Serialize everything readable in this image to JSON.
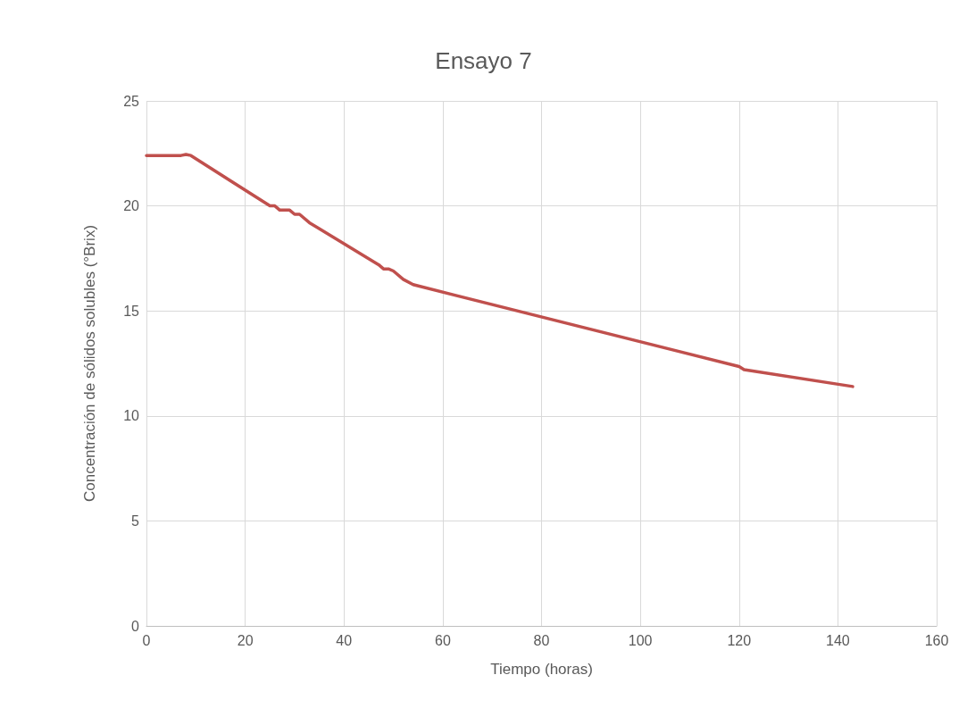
{
  "chart_data": {
    "type": "line",
    "title": "Ensayo 7",
    "xlabel": "Tiempo (horas)",
    "ylabel": "Concentración de sólidos solubles (°Brix)",
    "x": [
      0,
      7,
      8,
      9,
      25,
      26,
      27,
      29,
      30,
      31,
      33,
      47,
      48,
      49,
      50,
      52,
      54,
      120,
      121,
      143
    ],
    "series": [
      {
        "color": "#c0504d",
        "values": [
          22.4,
          22.4,
          22.45,
          22.4,
          20,
          20,
          19.8,
          19.8,
          19.6,
          19.6,
          19.2,
          17.2,
          17,
          17,
          16.9,
          16.5,
          16.25,
          12.35,
          12.2,
          11.4
        ]
      }
    ],
    "xlim": [
      0,
      160
    ],
    "xticks": [
      0,
      20,
      40,
      60,
      80,
      100,
      120,
      140,
      160
    ],
    "ylim": [
      0,
      25
    ],
    "yticks": [
      0,
      5,
      10,
      15,
      20,
      25
    ],
    "grid": true,
    "marker": "none",
    "line_style": "solid"
  }
}
